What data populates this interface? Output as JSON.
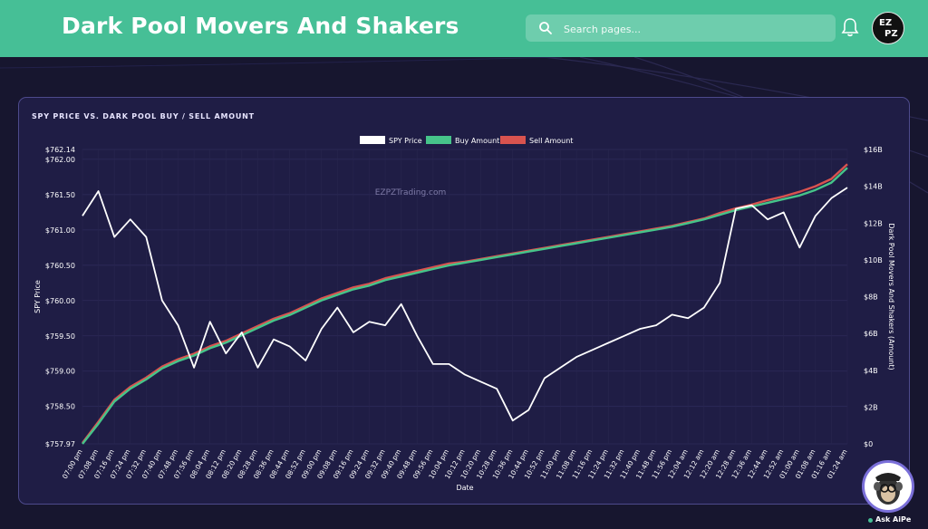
{
  "app": {
    "title": "Dark Pool Movers And Shakers"
  },
  "search": {
    "placeholder": "Search pages..."
  },
  "user": {
    "avatar_text_top": "EZ",
    "avatar_text_bottom": "PZ"
  },
  "assistant": {
    "label": "Ask AiPe"
  },
  "card": {
    "title": "SPY PRICE VS. DARK POOL BUY / SELL AMOUNT"
  },
  "colors": {
    "accent": "#46bf96",
    "spy_line": "#ffffff",
    "buy_line": "#46c48a",
    "sell_line": "#d9534f",
    "card_bg": "#1f1d45"
  },
  "chart_data": {
    "type": "line",
    "watermark": "EZPZTrading.com",
    "xlabel": "Date",
    "ylabel_left": "SPY Price",
    "ylabel_right": "Dark Pool Movers And Shakers (Amount)",
    "legend_position": "top-center",
    "grid": true,
    "ylim_left": [
      757.97,
      762.14
    ],
    "yticks_left": [
      "$762.14",
      "$762.00",
      "$761.50",
      "$761.00",
      "$760.50",
      "$760.00",
      "$759.50",
      "$759.00",
      "$758.50",
      "$757.97"
    ],
    "ytick_values_left": [
      762.14,
      762.0,
      761.5,
      761.0,
      760.5,
      760.0,
      759.5,
      759.0,
      758.5,
      757.97
    ],
    "ylim_right": [
      0,
      16
    ],
    "yticks_right": [
      "$16B",
      "$14B",
      "$12B",
      "$10B",
      "$8B",
      "$6B",
      "$4B",
      "$2B",
      "$0"
    ],
    "ytick_values_right": [
      16,
      14,
      12,
      10,
      8,
      6,
      4,
      2,
      0
    ],
    "x": [
      "07:00 pm",
      "07:08 pm",
      "07:16 pm",
      "07:24 pm",
      "07:32 pm",
      "07:40 pm",
      "07:48 pm",
      "07:56 pm",
      "08:04 pm",
      "08:12 pm",
      "08:20 pm",
      "08:28 pm",
      "08:36 pm",
      "08:44 pm",
      "08:52 pm",
      "09:00 pm",
      "09:08 pm",
      "09:16 pm",
      "09:24 pm",
      "09:32 pm",
      "09:40 pm",
      "09:48 pm",
      "09:56 pm",
      "10:04 pm",
      "10:12 pm",
      "10:20 pm",
      "10:28 pm",
      "10:36 pm",
      "10:44 pm",
      "10:52 pm",
      "11:00 pm",
      "11:08 pm",
      "11:16 pm",
      "11:24 pm",
      "11:32 pm",
      "11:40 pm",
      "11:48 pm",
      "11:56 pm",
      "12:04 am",
      "12:12 am",
      "12:20 am",
      "12:28 am",
      "12:36 am",
      "12:44 am",
      "12:52 am",
      "01:00 am",
      "01:08 am",
      "01:16 am",
      "01:24 am"
    ],
    "series": [
      {
        "name": "SPY Price",
        "axis": "left",
        "values": [
          761.2,
          761.55,
          760.9,
          761.15,
          760.9,
          760.0,
          759.65,
          759.05,
          759.7,
          759.25,
          759.55,
          759.05,
          759.45,
          759.35,
          759.15,
          759.6,
          759.9,
          759.55,
          759.7,
          759.65,
          759.95,
          759.5,
          759.1,
          759.1,
          758.95,
          758.85,
          758.75,
          758.3,
          758.45,
          758.9,
          759.05,
          759.2,
          759.3,
          759.4,
          759.5,
          759.6,
          759.65,
          759.8,
          759.75,
          759.9,
          760.25,
          761.3,
          761.35,
          761.15,
          761.25,
          760.75,
          761.2,
          761.45,
          761.6
        ]
      },
      {
        "name": "Buy Amount",
        "axis": "right",
        "values": [
          0,
          1.1,
          2.3,
          3.0,
          3.5,
          4.1,
          4.5,
          4.8,
          5.2,
          5.5,
          5.9,
          6.3,
          6.7,
          7.0,
          7.4,
          7.8,
          8.1,
          8.4,
          8.6,
          8.9,
          9.1,
          9.3,
          9.5,
          9.7,
          9.85,
          10.0,
          10.15,
          10.3,
          10.45,
          10.6,
          10.75,
          10.9,
          11.05,
          11.2,
          11.35,
          11.5,
          11.65,
          11.8,
          12.0,
          12.2,
          12.45,
          12.7,
          12.9,
          13.1,
          13.3,
          13.5,
          13.8,
          14.2,
          15.0
        ]
      },
      {
        "name": "Sell Amount",
        "axis": "right",
        "values": [
          0.05,
          1.2,
          2.4,
          3.1,
          3.6,
          4.2,
          4.6,
          4.9,
          5.3,
          5.6,
          6.0,
          6.4,
          6.8,
          7.1,
          7.5,
          7.9,
          8.2,
          8.5,
          8.7,
          9.0,
          9.2,
          9.4,
          9.6,
          9.8,
          9.9,
          10.05,
          10.2,
          10.35,
          10.5,
          10.65,
          10.8,
          10.95,
          11.1,
          11.25,
          11.4,
          11.55,
          11.7,
          11.85,
          12.05,
          12.25,
          12.55,
          12.8,
          13.0,
          13.25,
          13.45,
          13.7,
          14.0,
          14.4,
          15.2
        ]
      }
    ]
  }
}
